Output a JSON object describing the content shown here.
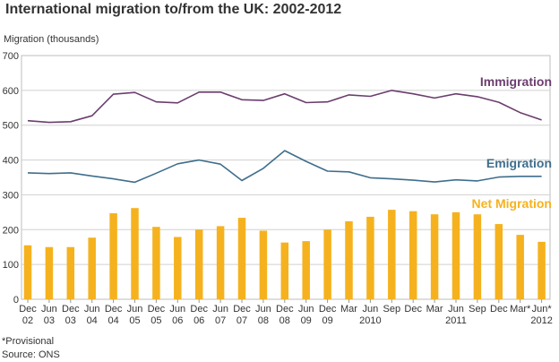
{
  "header": {
    "title": "International migration to/from the UK: 2002-2012",
    "y_axis_label": "Migration (thousands)"
  },
  "footer": {
    "note": "*Provisional",
    "source": "Source: ONS"
  },
  "chart_data": {
    "type": "line",
    "ylim": [
      0,
      700
    ],
    "yticks": [
      0,
      100,
      200,
      300,
      400,
      500,
      600,
      700
    ],
    "grid": true,
    "categories": [
      "Dec 02",
      "Jun 03",
      "Dec 03",
      "Jun 04",
      "Dec 04",
      "Jun 05",
      "Dec 05",
      "Jun 06",
      "Dec 06",
      "Jun 07",
      "Dec 07",
      "Jun 08",
      "Dec 08",
      "Jun 09",
      "Dec 09",
      "Mar 2010",
      "Jun 2010",
      "Sep 2010",
      "Dec 2010",
      "Mar 2011",
      "Jun 2011",
      "Sep 2011",
      "Dec 2011",
      "Mar* 2012",
      "Jun* 2012"
    ],
    "tick_labels": [
      {
        "top": "Dec",
        "bottom": "02"
      },
      {
        "top": "Jun",
        "bottom": "03"
      },
      {
        "top": "Dec",
        "bottom": "03"
      },
      {
        "top": "Jun",
        "bottom": "04"
      },
      {
        "top": "Dec",
        "bottom": "04"
      },
      {
        "top": "Jun",
        "bottom": "05"
      },
      {
        "top": "Dec",
        "bottom": "05"
      },
      {
        "top": "Jun",
        "bottom": "06"
      },
      {
        "top": "Dec",
        "bottom": "06"
      },
      {
        "top": "Jun",
        "bottom": "07"
      },
      {
        "top": "Dec",
        "bottom": "07"
      },
      {
        "top": "Jun",
        "bottom": "08"
      },
      {
        "top": "Dec",
        "bottom": "08"
      },
      {
        "top": "Jun",
        "bottom": "09"
      },
      {
        "top": "Dec",
        "bottom": "09"
      },
      {
        "top": "Mar",
        "bottom": ""
      },
      {
        "top": "Jun",
        "bottom": "2010"
      },
      {
        "top": "Sep",
        "bottom": ""
      },
      {
        "top": "Dec",
        "bottom": ""
      },
      {
        "top": "Mar",
        "bottom": ""
      },
      {
        "top": "Jun",
        "bottom": "2011"
      },
      {
        "top": "Sep",
        "bottom": ""
      },
      {
        "top": "Dec",
        "bottom": ""
      },
      {
        "top": "Mar*",
        "bottom": ""
      },
      {
        "top": "Jun*",
        "bottom": "2012"
      }
    ],
    "series": [
      {
        "name": "Immigration",
        "kind": "line",
        "color": "#6b3d6e",
        "values": [
          513,
          508,
          510,
          527,
          589,
          594,
          567,
          564,
          595,
          595,
          573,
          571,
          590,
          565,
          567,
          587,
          583,
          600,
          590,
          578,
          590,
          582,
          566,
          536,
          515
        ]
      },
      {
        "name": "Emigration",
        "kind": "line",
        "color": "#3f6e8c",
        "values": [
          363,
          361,
          363,
          354,
          346,
          336,
          362,
          389,
          400,
          388,
          341,
          376,
          427,
          396,
          368,
          366,
          349,
          346,
          342,
          337,
          343,
          340,
          351,
          353,
          353
        ]
      },
      {
        "name": "Net Migration",
        "kind": "bar",
        "color": "#f5b21e",
        "values": [
          155,
          150,
          150,
          177,
          247,
          262,
          208,
          179,
          200,
          210,
          234,
          197,
          163,
          167,
          200,
          224,
          237,
          257,
          253,
          244,
          250,
          244,
          216,
          185,
          165
        ]
      }
    ]
  }
}
